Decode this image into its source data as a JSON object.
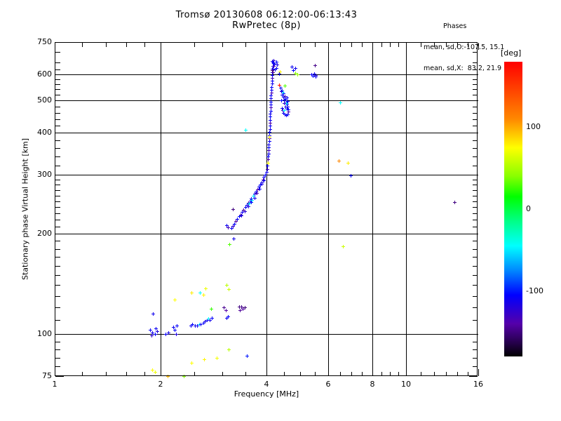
{
  "figure": {
    "background": "#ffffff",
    "axis_color": "#000000"
  },
  "title": {
    "line1": "Tromsø 20130608 06:12:00-06:13:43",
    "line2": "RwPretec (8p)"
  },
  "phases_annotation": {
    "header": "Phases",
    "o_line": "mean, sd,O:-107.5, 15.1",
    "x_line": "mean, sd,X:  83.2, 21.9"
  },
  "chart_data": {
    "type": "scatter",
    "title": "Tromsø 20130608 06:12:00-06:13:43",
    "subtitle": "RwPretec (8p)",
    "xlabel": "Frequency [MHz]",
    "ylabel": "Stationary phase Virtual Height [km]",
    "x_scale": "log2",
    "x_range": [
      1,
      16
    ],
    "y_scale": "log10",
    "y_range": [
      75,
      750
    ],
    "grid": true,
    "marker": "plus",
    "x_tick_labels": [
      1,
      2,
      4,
      6,
      8,
      10,
      16
    ],
    "x_minor_ticks": [
      1.2,
      1.4,
      1.6,
      1.8,
      2.5,
      3,
      3.5,
      4.5,
      5,
      5.5,
      6.5,
      7,
      7.5,
      8.5,
      9,
      9.5,
      11,
      12,
      13,
      14,
      15
    ],
    "x_gridlines": [
      2,
      4,
      6,
      8,
      10
    ],
    "y_tick_labels": [
      75,
      100,
      200,
      300,
      400,
      500,
      600,
      750
    ],
    "y_minor_ticks": [
      80,
      85,
      90,
      95,
      110,
      120,
      130,
      140,
      150,
      160,
      170,
      180,
      190,
      210,
      220,
      230,
      240,
      250,
      260,
      270,
      280,
      290,
      320,
      340,
      360,
      380,
      420,
      440,
      460,
      480,
      520,
      540,
      560,
      580,
      620,
      650,
      700
    ],
    "y_gridlines": [
      100,
      200,
      300,
      400,
      500,
      600
    ],
    "colorbar": {
      "label": "[deg]",
      "min": -180,
      "max": 180,
      "tick_labels": [
        100,
        0,
        -100
      ],
      "stops": [
        [
          180,
          "#ff0000"
        ],
        [
          110,
          "#ff8800"
        ],
        [
          75,
          "#ffff00"
        ],
        [
          40,
          "#88ff00"
        ],
        [
          15,
          "#00ff00"
        ],
        [
          -15,
          "#00ff88"
        ],
        [
          -45,
          "#00ffff"
        ],
        [
          -75,
          "#0088ff"
        ],
        [
          -105,
          "#0000ff"
        ],
        [
          -140,
          "#5500aa"
        ],
        [
          -165,
          "#220044"
        ],
        [
          -180,
          "#000000"
        ]
      ]
    },
    "points_format": "[frequency_MHz, virtual_height_km, phase_deg]",
    "points": [
      [
        1.87,
        103,
        -108
      ],
      [
        1.9,
        101,
        -112
      ],
      [
        1.93,
        100,
        -106
      ],
      [
        1.96,
        102,
        -118
      ],
      [
        1.89,
        99,
        -125
      ],
      [
        1.94,
        104,
        -110
      ],
      [
        1.91,
        115,
        -112
      ],
      [
        2.07,
        100,
        -108
      ],
      [
        2.11,
        101,
        -114
      ],
      [
        2.18,
        105,
        -110
      ],
      [
        2.2,
        103,
        -106
      ],
      [
        2.22,
        100,
        -118
      ],
      [
        2.23,
        106,
        -108
      ],
      [
        2.44,
        106,
        -110
      ],
      [
        2.47,
        107,
        -106
      ],
      [
        2.51,
        106,
        -114
      ],
      [
        2.55,
        106,
        -108
      ],
      [
        2.58,
        107,
        -48
      ],
      [
        2.61,
        107,
        -110
      ],
      [
        2.65,
        108,
        -106
      ],
      [
        2.68,
        109,
        -114
      ],
      [
        2.71,
        110,
        -108
      ],
      [
        2.74,
        111,
        -44
      ],
      [
        2.77,
        110,
        -112
      ],
      [
        2.8,
        112,
        -106
      ],
      [
        3.08,
        112,
        -110
      ],
      [
        3.12,
        113,
        -108
      ],
      [
        3.03,
        120,
        -146
      ],
      [
        3.07,
        118,
        -140
      ],
      [
        3.35,
        121,
        -150
      ],
      [
        3.37,
        118,
        -144
      ],
      [
        3.4,
        121,
        -148
      ],
      [
        3.43,
        119,
        -142
      ],
      [
        3.47,
        120,
        -152
      ],
      [
        2.79,
        119,
        25
      ],
      [
        2.69,
        137,
        70
      ],
      [
        3.08,
        140,
        55
      ],
      [
        3.13,
        136,
        60
      ],
      [
        2.2,
        127,
        75
      ],
      [
        2.45,
        133,
        80
      ],
      [
        2.59,
        133,
        -45
      ],
      [
        2.65,
        131,
        78
      ],
      [
        1.9,
        78,
        75
      ],
      [
        1.93,
        77,
        70
      ],
      [
        2.1,
        75,
        95
      ],
      [
        2.33,
        75,
        40
      ],
      [
        2.45,
        82,
        75
      ],
      [
        2.67,
        84,
        78
      ],
      [
        2.9,
        85,
        72
      ],
      [
        3.13,
        90,
        55
      ],
      [
        3.52,
        86,
        -100
      ],
      [
        3.18,
        208,
        -110
      ],
      [
        3.21,
        211,
        -126
      ],
      [
        3.24,
        214,
        -106
      ],
      [
        3.28,
        218,
        -142
      ],
      [
        3.31,
        221,
        -110
      ],
      [
        3.35,
        225,
        -102
      ],
      [
        3.38,
        228,
        -132
      ],
      [
        3.42,
        232,
        -110
      ],
      [
        3.45,
        236,
        -146
      ],
      [
        3.49,
        240,
        -108
      ],
      [
        3.52,
        243,
        -112
      ],
      [
        3.56,
        247,
        -136
      ],
      [
        3.6,
        251,
        -106
      ],
      [
        3.63,
        255,
        -110
      ],
      [
        3.67,
        259,
        -50
      ],
      [
        3.7,
        263,
        -116
      ],
      [
        3.74,
        267,
        -108
      ],
      [
        3.77,
        271,
        -140
      ],
      [
        3.81,
        276,
        -110
      ],
      [
        3.84,
        280,
        -106
      ],
      [
        3.88,
        285,
        -112
      ],
      [
        3.91,
        290,
        -138
      ],
      [
        3.94,
        295,
        -108
      ],
      [
        3.97,
        300,
        -110
      ],
      [
        3.4,
        226,
        -116
      ],
      [
        3.47,
        233,
        -122
      ],
      [
        3.55,
        241,
        -118
      ],
      [
        3.62,
        248,
        -108
      ],
      [
        3.7,
        256,
        -112
      ],
      [
        3.76,
        264,
        -136
      ],
      [
        3.83,
        272,
        -110
      ],
      [
        3.89,
        281,
        -116
      ],
      [
        3.93,
        288,
        -108
      ],
      [
        3.58,
        246,
        -46
      ],
      [
        3.64,
        252,
        -52
      ],
      [
        3.21,
        237,
        -150
      ],
      [
        3.08,
        212,
        -110
      ],
      [
        3.12,
        209,
        -132
      ],
      [
        3.23,
        193,
        -112
      ],
      [
        3.14,
        186,
        30
      ],
      [
        4.0,
        306,
        -110
      ],
      [
        4.02,
        312,
        -126
      ],
      [
        4.03,
        319,
        -108
      ],
      [
        4.04,
        326,
        -112
      ],
      [
        4.05,
        333,
        -142
      ],
      [
        4.05,
        340,
        -108
      ],
      [
        4.06,
        347,
        -110
      ],
      [
        4.06,
        355,
        -132
      ],
      [
        4.07,
        362,
        -106
      ],
      [
        4.07,
        370,
        -112
      ],
      [
        4.08,
        378,
        -108
      ],
      [
        4.08,
        386,
        -136
      ],
      [
        4.09,
        394,
        -110
      ],
      [
        4.09,
        402,
        -106
      ],
      [
        4.1,
        411,
        -112
      ],
      [
        4.1,
        420,
        -108
      ],
      [
        4.1,
        429,
        -142
      ],
      [
        4.11,
        438,
        -110
      ],
      [
        4.11,
        447,
        -106
      ],
      [
        4.11,
        457,
        -112
      ],
      [
        4.12,
        466,
        -108
      ],
      [
        4.12,
        476,
        -132
      ],
      [
        4.12,
        486,
        -110
      ],
      [
        4.13,
        496,
        -106
      ],
      [
        4.13,
        507,
        -112
      ],
      [
        4.13,
        517,
        -108
      ],
      [
        4.14,
        528,
        -136
      ],
      [
        4.14,
        539,
        -110
      ],
      [
        4.14,
        550,
        -106
      ],
      [
        4.15,
        562,
        -112
      ],
      [
        4.15,
        573,
        -108
      ],
      [
        4.15,
        585,
        -132
      ],
      [
        4.16,
        597,
        -110
      ],
      [
        4.16,
        609,
        -106
      ],
      [
        4.17,
        622,
        -112
      ],
      [
        4.18,
        635,
        -108
      ],
      [
        4.19,
        648,
        -122
      ],
      [
        4.09,
        389,
        80
      ],
      [
        4.05,
        325,
        75
      ],
      [
        4.16,
        655,
        -110
      ],
      [
        4.18,
        649,
        -106
      ],
      [
        4.2,
        660,
        -122
      ],
      [
        4.22,
        645,
        -108
      ],
      [
        4.19,
        636,
        -136
      ],
      [
        4.16,
        623,
        -110
      ],
      [
        4.23,
        620,
        -112
      ],
      [
        4.28,
        626,
        -108
      ],
      [
        4.3,
        641,
        -116
      ],
      [
        4.27,
        652,
        -106
      ],
      [
        4.16,
        617,
        -150
      ],
      [
        4.18,
        607,
        -146
      ],
      [
        4.38,
        612,
        80
      ],
      [
        4.35,
        601,
        -110
      ],
      [
        4.74,
        633,
        -110
      ],
      [
        4.78,
        618,
        -106
      ],
      [
        4.83,
        625,
        -112
      ],
      [
        4.85,
        606,
        40
      ],
      [
        4.9,
        600,
        45
      ],
      [
        5.39,
        598,
        -110
      ],
      [
        5.43,
        592,
        -106
      ],
      [
        5.48,
        601,
        -112
      ],
      [
        5.52,
        589,
        -108
      ],
      [
        5.54,
        595,
        -116
      ],
      [
        5.5,
        639,
        -148
      ],
      [
        4.36,
        556,
        170
      ],
      [
        4.4,
        546,
        -108
      ],
      [
        4.44,
        536,
        -112
      ],
      [
        4.48,
        526,
        -106
      ],
      [
        4.52,
        516,
        -132
      ],
      [
        4.54,
        506,
        -108
      ],
      [
        4.56,
        497,
        -112
      ],
      [
        4.58,
        488,
        -106
      ],
      [
        4.6,
        479,
        -116
      ],
      [
        4.62,
        470,
        -108
      ],
      [
        4.62,
        463,
        -136
      ],
      [
        4.6,
        455,
        -110
      ],
      [
        4.56,
        453,
        -106
      ],
      [
        4.52,
        455,
        -112
      ],
      [
        4.48,
        460,
        -108
      ],
      [
        4.46,
        467,
        -132
      ],
      [
        4.44,
        474,
        -110
      ],
      [
        4.42,
        500,
        -106
      ],
      [
        4.45,
        530,
        -45
      ],
      [
        4.55,
        490,
        -40
      ],
      [
        4.5,
        468,
        -50
      ],
      [
        4.52,
        553,
        30
      ],
      [
        4.47,
        512,
        -110
      ],
      [
        4.5,
        502,
        -108
      ],
      [
        4.53,
        480,
        -112
      ],
      [
        4.57,
        472,
        -106
      ],
      [
        4.49,
        490,
        -122
      ],
      [
        4.44,
        520,
        -110
      ],
      [
        4.41,
        532,
        -116
      ],
      [
        4.58,
        510,
        -108
      ],
      [
        4.61,
        498,
        -110
      ],
      [
        3.49,
        409,
        -45
      ],
      [
        6.48,
        493,
        -45
      ],
      [
        6.44,
        331,
        110
      ],
      [
        6.84,
        325,
        80
      ],
      [
        6.97,
        298,
        -106
      ],
      [
        6.6,
        183,
        60
      ],
      [
        13.75,
        248,
        -150
      ]
    ]
  }
}
